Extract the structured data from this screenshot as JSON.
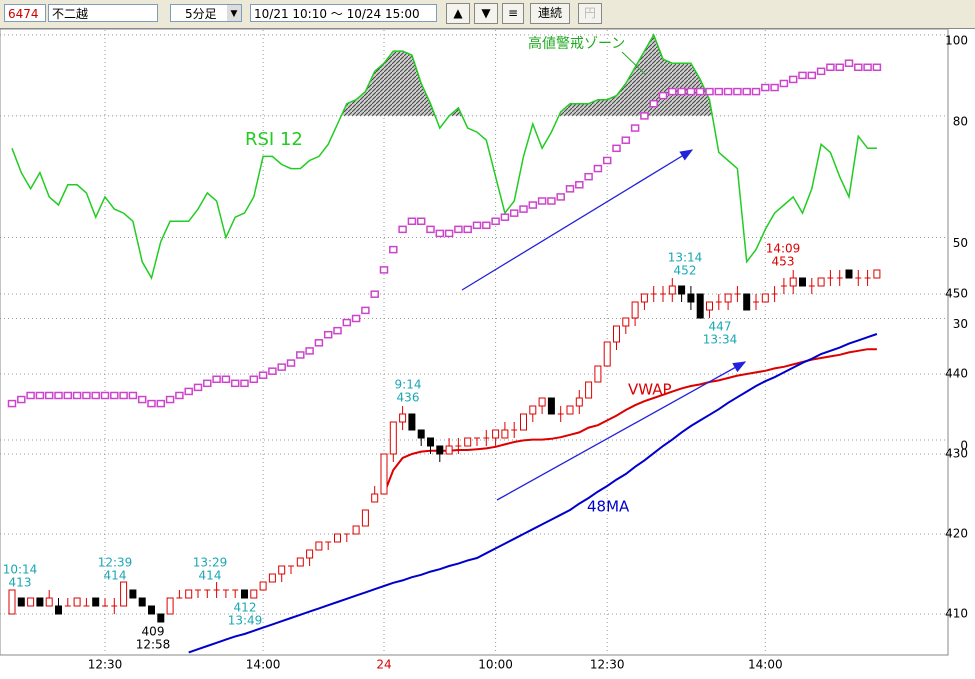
{
  "toolbar": {
    "code": "6474",
    "name": "不二越",
    "interval": "5分足",
    "range": "10/21 10:10 ～ 10/24 15:00",
    "continuous": "連続",
    "yen": "円"
  },
  "chart_data": {
    "type": "candlestick",
    "categories": [
      null,
      null,
      null,
      null,
      null,
      null,
      null,
      null,
      null,
      null,
      "12:30",
      null,
      null,
      null,
      null,
      null,
      null,
      null,
      null,
      null,
      null,
      null,
      null,
      null,
      null,
      null,
      null,
      "14:00",
      null,
      null,
      null,
      null,
      null,
      null,
      null,
      null,
      null,
      null,
      null,
      null,
      "24",
      null,
      null,
      null,
      null,
      null,
      null,
      null,
      null,
      null,
      null,
      null,
      "10:00",
      null,
      null,
      null,
      null,
      null,
      null,
      null,
      null,
      null,
      null,
      null,
      "12:30",
      null,
      null,
      null,
      null,
      null,
      null,
      null,
      null,
      null,
      null,
      null,
      null,
      null,
      null,
      null,
      null,
      "14:00",
      null,
      null,
      null,
      null,
      null,
      null,
      null,
      null,
      null,
      null,
      null,
      null
    ],
    "ohlc": [
      [
        410,
        413,
        410,
        413
      ],
      [
        412,
        412,
        411,
        411
      ],
      [
        411,
        412,
        411,
        412
      ],
      [
        412,
        412,
        411,
        411
      ],
      [
        411,
        413,
        411,
        412
      ],
      [
        411,
        412,
        410,
        410
      ],
      [
        411,
        412,
        411,
        411
      ],
      [
        411,
        412,
        411,
        412
      ],
      [
        411,
        412,
        411,
        411
      ],
      [
        412,
        412,
        411,
        411
      ],
      [
        411,
        412,
        411,
        411
      ],
      [
        411,
        412,
        410,
        411
      ],
      [
        411,
        414,
        411,
        414
      ],
      [
        413,
        413,
        412,
        412
      ],
      [
        412,
        412,
        411,
        411
      ],
      [
        411,
        411,
        410,
        410
      ],
      [
        410,
        410,
        409,
        409
      ],
      [
        410,
        412,
        410,
        412
      ],
      [
        412,
        413,
        412,
        412
      ],
      [
        412,
        413,
        412,
        413
      ],
      [
        413,
        413,
        412,
        413
      ],
      [
        413,
        413,
        412,
        413
      ],
      [
        413,
        414,
        412,
        413
      ],
      [
        413,
        413,
        412,
        413
      ],
      [
        413,
        413,
        412,
        413
      ],
      [
        413,
        413,
        412,
        412
      ],
      [
        412,
        413,
        412,
        413
      ],
      [
        413,
        414,
        413,
        414
      ],
      [
        414,
        415,
        414,
        415
      ],
      [
        415,
        416,
        414,
        416
      ],
      [
        416,
        416,
        415,
        416
      ],
      [
        416,
        417,
        416,
        417
      ],
      [
        417,
        418,
        416,
        418
      ],
      [
        418,
        419,
        418,
        419
      ],
      [
        419,
        419,
        418,
        419
      ],
      [
        419,
        420,
        419,
        420
      ],
      [
        420,
        420,
        419,
        420
      ],
      [
        420,
        421,
        420,
        421
      ],
      [
        421,
        423,
        421,
        423
      ],
      [
        424,
        426,
        424,
        425
      ],
      [
        425,
        430,
        425,
        430
      ],
      [
        430,
        434,
        429,
        434
      ],
      [
        434,
        436,
        433,
        435
      ],
      [
        435,
        435,
        433,
        433
      ],
      [
        433,
        433,
        431,
        432
      ],
      [
        432,
        432,
        430,
        431
      ],
      [
        431,
        431,
        429,
        430
      ],
      [
        430,
        432,
        430,
        431
      ],
      [
        431,
        432,
        430,
        431
      ],
      [
        431,
        432,
        431,
        432
      ],
      [
        432,
        432,
        431,
        432
      ],
      [
        432,
        433,
        431,
        432
      ],
      [
        432,
        433,
        431,
        433
      ],
      [
        432,
        434,
        432,
        433
      ],
      [
        433,
        434,
        432,
        433
      ],
      [
        433,
        435,
        433,
        435
      ],
      [
        435,
        436,
        434,
        436
      ],
      [
        436,
        437,
        435,
        437
      ],
      [
        437,
        437,
        435,
        435
      ],
      [
        435,
        436,
        434,
        435
      ],
      [
        435,
        436,
        435,
        436
      ],
      [
        436,
        438,
        435,
        437
      ],
      [
        437,
        439,
        437,
        439
      ],
      [
        439,
        441,
        439,
        441
      ],
      [
        441,
        444,
        441,
        444
      ],
      [
        444,
        446,
        443,
        446
      ],
      [
        446,
        447,
        445,
        447
      ],
      [
        447,
        449,
        446,
        449
      ],
      [
        449,
        450,
        448,
        450
      ],
      [
        450,
        451,
        449,
        450
      ],
      [
        450,
        451,
        449,
        450
      ],
      [
        450,
        452,
        449,
        451
      ],
      [
        451,
        451,
        449,
        450
      ],
      [
        450,
        451,
        448,
        449
      ],
      [
        450,
        450,
        447,
        447
      ],
      [
        448,
        449,
        447,
        449
      ],
      [
        449,
        450,
        448,
        449
      ],
      [
        449,
        450,
        448,
        450
      ],
      [
        450,
        451,
        449,
        450
      ],
      [
        450,
        450,
        448,
        448
      ],
      [
        449,
        450,
        448,
        449
      ],
      [
        449,
        450,
        449,
        450
      ],
      [
        450,
        451,
        449,
        450
      ],
      [
        451,
        452,
        450,
        451
      ],
      [
        451,
        453,
        450,
        452
      ],
      [
        452,
        452,
        451,
        451
      ],
      [
        451,
        452,
        450,
        451
      ],
      [
        451,
        452,
        451,
        452
      ],
      [
        452,
        453,
        451,
        452
      ],
      [
        452,
        453,
        451,
        452
      ],
      [
        453,
        453,
        452,
        452
      ],
      [
        452,
        453,
        451,
        452
      ],
      [
        452,
        453,
        451,
        452
      ],
      [
        452,
        453,
        452,
        453
      ]
    ],
    "up_color": "#dd0000",
    "down_color": "#000000",
    "series": [
      {
        "name": "RSI 12",
        "color": "#22cc22",
        "axis": "y2",
        "values": [
          72,
          66,
          62,
          66,
          60,
          58,
          63,
          63,
          61,
          55,
          60,
          57,
          56,
          54,
          44,
          40,
          49,
          54,
          54,
          54,
          57,
          61,
          59,
          50,
          55,
          56,
          60,
          70,
          70,
          68,
          67,
          67,
          69,
          70,
          73,
          78,
          83,
          84,
          86,
          91,
          93,
          96,
          96,
          95,
          88,
          83,
          77,
          80,
          82,
          77,
          76,
          74,
          65,
          56,
          59,
          70,
          78,
          72,
          76,
          81,
          83,
          83,
          83,
          84,
          84,
          85,
          88,
          92,
          96,
          100,
          94,
          93,
          93,
          93,
          89,
          84,
          71,
          69,
          67,
          44,
          47,
          52,
          56,
          58,
          60,
          56,
          62,
          73,
          71,
          65,
          60,
          75,
          72,
          72
        ]
      },
      {
        "color": "#cc44cc",
        "axis": "y2",
        "marker": "square",
        "values": [
          9,
          10,
          11,
          11,
          11,
          11,
          11,
          11,
          11,
          11,
          11,
          11,
          11,
          11,
          10,
          9,
          9,
          10,
          11,
          12,
          13,
          14,
          15,
          15,
          14,
          14,
          15,
          16,
          17,
          18,
          19,
          21,
          22,
          24,
          26,
          27,
          29,
          30,
          32,
          36,
          42,
          47,
          52,
          54,
          54,
          52,
          51,
          51,
          52,
          52,
          53,
          53,
          54,
          55,
          56,
          57,
          58,
          59,
          59,
          60,
          62,
          63,
          65,
          67,
          69,
          72,
          74,
          77,
          80,
          83,
          85,
          86,
          86,
          86,
          86,
          86,
          86,
          86,
          86,
          86,
          86,
          87,
          87,
          88,
          89,
          90,
          90,
          91,
          92,
          92,
          93,
          92,
          92,
          92
        ]
      },
      {
        "name": "VWAP",
        "color": "#dd0000",
        "values": [
          null,
          null,
          null,
          null,
          null,
          null,
          null,
          null,
          null,
          null,
          null,
          null,
          null,
          null,
          null,
          null,
          null,
          null,
          null,
          null,
          null,
          null,
          null,
          null,
          null,
          null,
          null,
          null,
          null,
          null,
          null,
          null,
          null,
          null,
          null,
          null,
          null,
          null,
          null,
          null,
          425,
          428,
          429.5,
          430,
          430.3,
          430.4,
          430.4,
          430.4,
          430.5,
          430.5,
          430.6,
          430.7,
          430.9,
          431.2,
          431.5,
          431.7,
          431.8,
          431.8,
          431.9,
          432.1,
          432.4,
          432.7,
          433.3,
          433.6,
          434.2,
          434.8,
          435.5,
          436.1,
          436.6,
          437,
          437.4,
          437.8,
          438.2,
          438.5,
          438.7,
          439,
          439.2,
          439.5,
          439.8,
          440,
          440.2,
          440.4,
          440.7,
          440.9,
          441.2,
          441.5,
          441.8,
          442,
          442.2,
          442.4,
          442.7,
          442.9,
          443.1,
          443.1
        ]
      },
      {
        "name": "48MA",
        "color": "#0000cc",
        "values": [
          null,
          null,
          null,
          null,
          null,
          null,
          null,
          null,
          null,
          null,
          null,
          null,
          null,
          null,
          null,
          null,
          null,
          null,
          null,
          405.2,
          405.6,
          406,
          406.4,
          406.8,
          407.2,
          407.5,
          407.9,
          408.3,
          408.7,
          409.1,
          409.5,
          409.9,
          410.3,
          410.7,
          411.1,
          411.5,
          411.9,
          412.3,
          412.7,
          413.1,
          413.5,
          413.9,
          414.2,
          414.6,
          414.9,
          415.3,
          415.6,
          416,
          416.3,
          416.7,
          417,
          417.6,
          418.2,
          418.8,
          419.4,
          420,
          420.6,
          421.2,
          421.8,
          422.4,
          423,
          423.8,
          424.5,
          425.3,
          426,
          426.8,
          427.5,
          428.4,
          429.2,
          430.1,
          431,
          431.8,
          432.7,
          433.5,
          434.2,
          434.9,
          435.6,
          436.4,
          437.1,
          437.8,
          438.5,
          439.1,
          439.6,
          440.2,
          440.8,
          441.4,
          441.9,
          442.5,
          442.9,
          443.3,
          443.8,
          444.2,
          444.6,
          445
        ]
      }
    ],
    "zone_label": "高値警戒ゾーン",
    "annotations": [
      {
        "lines": [
          "10:14",
          413
        ],
        "color": "#1aa8b4"
      },
      {
        "lines": [
          "12:39",
          414
        ],
        "color": "#1aa8b4"
      },
      {
        "lines": [
          409,
          "12:58"
        ],
        "color": "#000000"
      },
      {
        "lines": [
          "13:29",
          414
        ],
        "color": "#1aa8b4"
      },
      {
        "lines": [
          412,
          "13:49"
        ],
        "color": "#1aa8b4"
      },
      {
        "lines": [
          "9:14",
          436
        ],
        "color": "#1aa8b4"
      },
      {
        "lines": [
          "13:14",
          452
        ],
        "color": "#1aa8b4"
      },
      {
        "lines": [
          447,
          "13:34"
        ],
        "color": "#1aa8b4"
      },
      {
        "lines": [
          "14:09",
          453
        ],
        "color": "#dd0000"
      }
    ],
    "ylim": [
      405,
      483
    ],
    "yticks": [
      410,
      420,
      430,
      440,
      450
    ],
    "y2lim": [
      -52.8,
      101.2
    ],
    "y2ticks": [
      0,
      30,
      50,
      80,
      100
    ],
    "grid": true
  }
}
